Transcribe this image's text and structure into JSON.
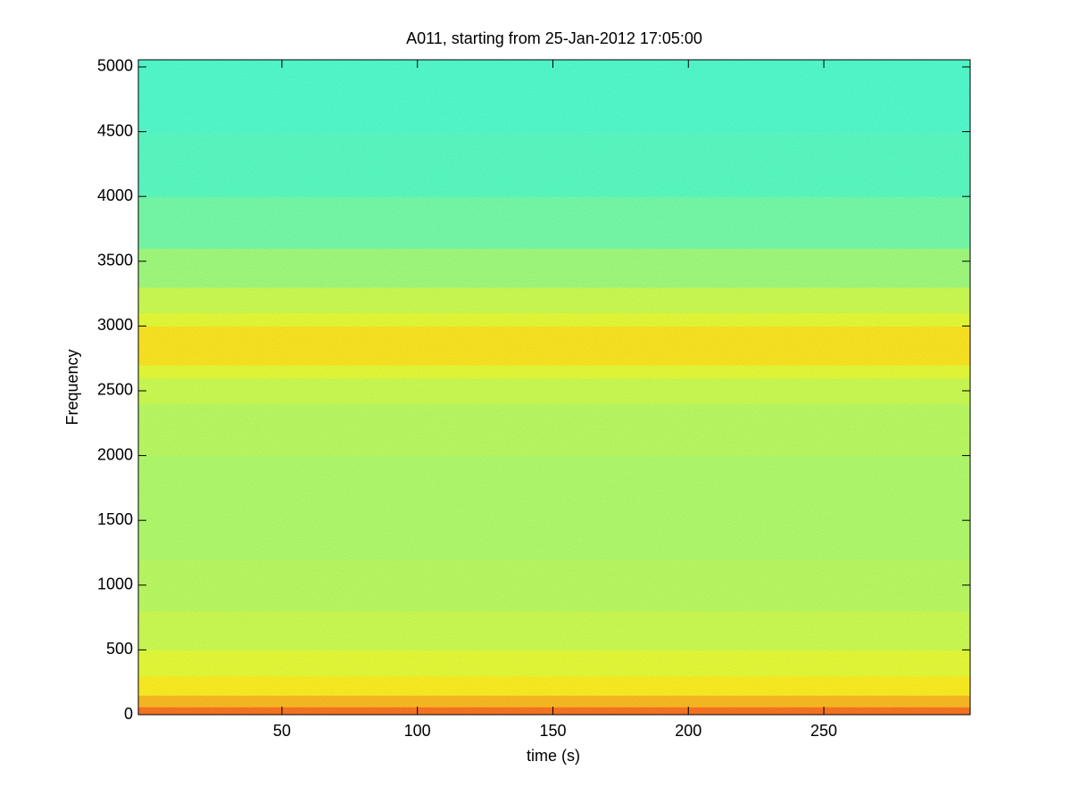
{
  "chart_data": {
    "type": "spectrogram",
    "title": "A011, starting from 25-Jan-2012 17:05:00",
    "xlabel": "time (s)",
    "ylabel": "Frequency",
    "xlim": [
      -3,
      304
    ],
    "xticks": [
      50,
      100,
      150,
      200,
      250
    ],
    "ylim": [
      0,
      5055
    ],
    "yticks": [
      0,
      500,
      1000,
      1500,
      2000,
      2500,
      3000,
      3500,
      4000,
      4500,
      5000
    ],
    "colormap": "jet",
    "clim": [
      0,
      1
    ],
    "frequency_bins": [
      0,
      60,
      150,
      300,
      500,
      800,
      1200,
      1600,
      2000,
      2400,
      2600,
      2700,
      3000,
      3100,
      3300,
      3600,
      4000,
      4500,
      5055
    ],
    "levels": [
      0.78,
      0.7,
      0.64,
      0.6,
      0.57,
      0.55,
      0.54,
      0.54,
      0.55,
      0.57,
      0.6,
      0.65,
      0.6,
      0.57,
      0.52,
      0.47,
      0.44,
      0.43
    ]
  }
}
